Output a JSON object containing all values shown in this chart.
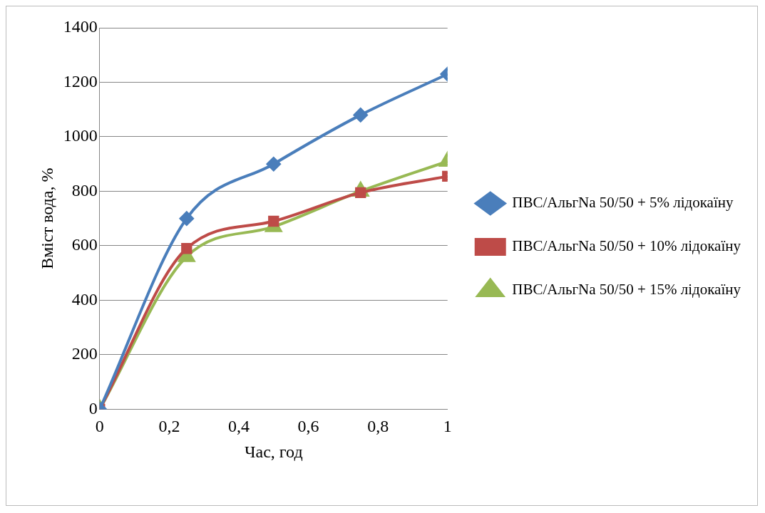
{
  "chart_data": {
    "type": "line",
    "xlabel": "Час, год",
    "ylabel": "Вміст вода, %",
    "x": [
      0,
      0.25,
      0.5,
      0.75,
      1
    ],
    "xlim": [
      0,
      1
    ],
    "xticks": [
      0,
      {
        "value": 0.2,
        "label": "0,2"
      },
      {
        "value": 0.4,
        "label": "0,4"
      },
      {
        "value": 0.6,
        "label": "0,6"
      },
      {
        "value": 0.8,
        "label": "0,8"
      },
      1
    ],
    "ylim": [
      0,
      1400
    ],
    "yticks": [
      0,
      200,
      400,
      600,
      800,
      1000,
      1200,
      1400
    ],
    "grid": "y",
    "legend": "right",
    "series": [
      {
        "name": "ПВС/АльгNa 50/50 + 5% лідокаїну",
        "color": "#4a7ebb",
        "marker": "diamond",
        "values": [
          0,
          700,
          900,
          1080,
          1230
        ]
      },
      {
        "name": "ПВС/АльгNa 50/50 + 10% лідокаїну",
        "color": "#be4b48",
        "marker": "square",
        "values": [
          0,
          590,
          690,
          795,
          855
        ]
      },
      {
        "name": "ПВС/АльгNa 50/50 + 15% лідокаїну",
        "color": "#98b954",
        "marker": "triangle",
        "values": [
          0,
          560,
          670,
          800,
          910
        ]
      }
    ]
  }
}
